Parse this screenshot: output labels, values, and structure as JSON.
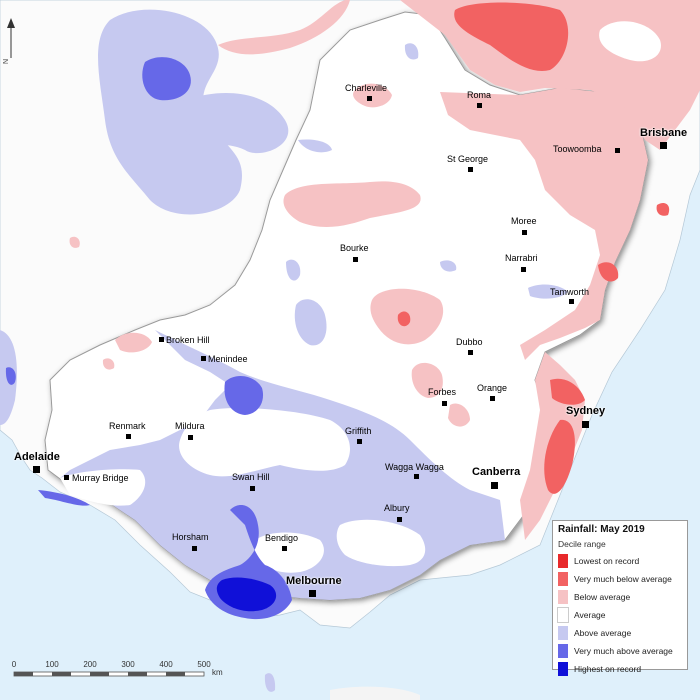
{
  "legend": {
    "title": "Rainfall: May 2019",
    "subtitle": "Decile range",
    "items": [
      {
        "label": "Lowest on record",
        "color": "#e8292b"
      },
      {
        "label": "Very much below average",
        "color": "#f26262"
      },
      {
        "label": "Below average",
        "color": "#f6c2c4"
      },
      {
        "label": "Average",
        "color": "#ffffff"
      },
      {
        "label": "Above average",
        "color": "#c6c9f0"
      },
      {
        "label": "Very much above average",
        "color": "#6668e8"
      },
      {
        "label": "Highest on record",
        "color": "#1010d8"
      }
    ]
  },
  "cities": {
    "brisbane": "Brisbane",
    "sydney": "Sydney",
    "canberra": "Canberra",
    "melbourne": "Melbourne",
    "adelaide": "Adelaide"
  },
  "towns": {
    "charleville": "Charleville",
    "roma": "Roma",
    "toowoomba": "Toowoomba",
    "st_george": "St George",
    "moree": "Moree",
    "bourke": "Bourke",
    "narrabri": "Narrabri",
    "tamworth": "Tamworth",
    "broken_hill": "Broken Hill",
    "menindee": "Menindee",
    "dubbo": "Dubbo",
    "orange": "Orange",
    "forbes": "Forbes",
    "renmark": "Renmark",
    "mildura": "Mildura",
    "griffith": "Griffith",
    "wagga_wagga": "Wagga Wagga",
    "murray_bridge": "Murray Bridge",
    "swan_hill": "Swan Hill",
    "albury": "Albury",
    "horsham": "Horsham",
    "bendigo": "Bendigo"
  },
  "scale": {
    "ticks": [
      "0",
      "100",
      "200",
      "300",
      "400",
      "500"
    ],
    "unit": "km"
  },
  "north": "N",
  "colors": {
    "ocean": "#dff0fb",
    "land_outside": "#f4f4f4",
    "region_border": "#888888"
  }
}
